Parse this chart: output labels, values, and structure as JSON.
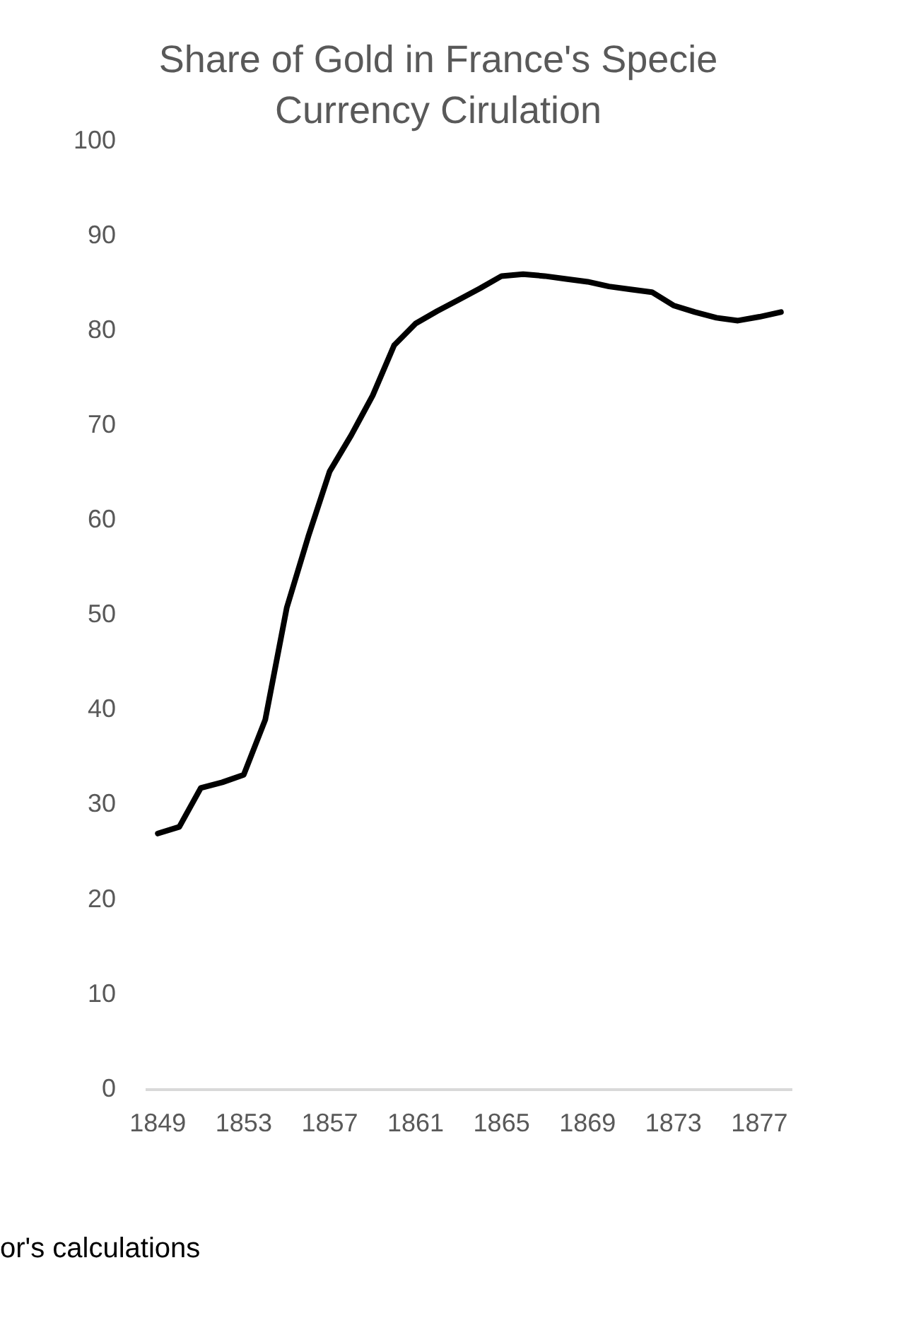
{
  "chart_data": {
    "type": "line",
    "title": "Share of Gold in France's Specie Currency Cirulation",
    "categories": [
      "1849",
      null,
      null,
      null,
      "1853",
      null,
      null,
      null,
      "1857",
      null,
      null,
      null,
      "1861",
      null,
      null,
      null,
      "1865",
      null,
      null,
      null,
      "1869",
      null,
      null,
      null,
      "1873",
      null,
      null,
      null,
      "1877",
      null
    ],
    "series": [
      {
        "color": "#000000",
        "values": [
          27,
          27.7,
          31.8,
          32.4,
          33.2,
          39,
          50.8,
          58.3,
          65.2,
          69,
          73.2,
          78.5,
          80.8,
          82.1,
          83.3,
          84.5,
          85.8,
          86,
          85.8,
          85.5,
          85.2,
          84.7,
          84.4,
          84.1,
          82.7,
          82,
          81.4,
          81.1,
          81.5,
          82
        ]
      }
    ],
    "ylim": [
      0,
      100
    ],
    "yticks": [
      0,
      10,
      20,
      30,
      40,
      50,
      60,
      70,
      80,
      90,
      100
    ],
    "grid": false,
    "legend": false,
    "marker": "none",
    "line_style": "solid",
    "annotations": [
      "or's calculations"
    ]
  }
}
